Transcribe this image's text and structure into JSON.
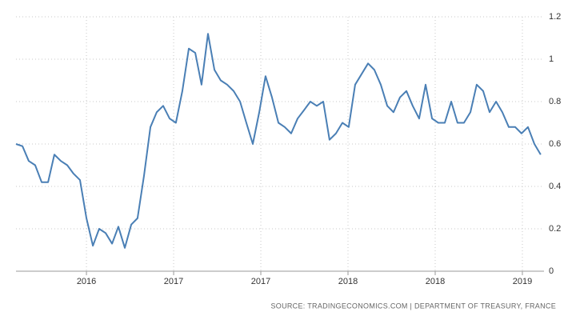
{
  "chart_data": {
    "type": "line",
    "source": "SOURCE: TRADINGECONOMICS.COM  |  DEPARTMENT OF TREASURY, FRANCE",
    "x": [
      2016.096,
      2016.133,
      2016.169,
      2016.206,
      2016.243,
      2016.28,
      2016.316,
      2016.353,
      2016.39,
      2016.426,
      2016.463,
      2016.5,
      2016.537,
      2016.573,
      2016.61,
      2016.647,
      2016.683,
      2016.72,
      2016.757,
      2016.793,
      2016.83,
      2016.867,
      2016.903,
      2016.94,
      2016.977,
      2017.013,
      2017.05,
      2017.087,
      2017.124,
      2017.16,
      2017.197,
      2017.234,
      2017.27,
      2017.307,
      2017.344,
      2017.381,
      2017.417,
      2017.454,
      2017.491,
      2017.527,
      2017.564,
      2017.601,
      2017.637,
      2017.674,
      2017.711,
      2017.748,
      2017.784,
      2017.821,
      2017.858,
      2017.894,
      2017.931,
      2017.968,
      2018.004,
      2018.041,
      2018.078,
      2018.115,
      2018.151,
      2018.188,
      2018.225,
      2018.261,
      2018.298,
      2018.335,
      2018.371,
      2018.408,
      2018.445,
      2018.482,
      2018.518,
      2018.555,
      2018.592,
      2018.628,
      2018.665,
      2018.702,
      2018.738,
      2018.775,
      2018.812,
      2018.849,
      2018.885,
      2018.922,
      2018.959,
      2018.995,
      2019.032,
      2019.069,
      2019.105
    ],
    "series": [
      {
        "color": "#4a7fb5",
        "values": [
          0.6,
          0.59,
          0.52,
          0.5,
          0.42,
          0.42,
          0.55,
          0.52,
          0.5,
          0.46,
          0.43,
          0.25,
          0.12,
          0.2,
          0.18,
          0.13,
          0.21,
          0.11,
          0.22,
          0.25,
          0.45,
          0.68,
          0.75,
          0.78,
          0.72,
          0.7,
          0.85,
          1.05,
          1.03,
          0.88,
          1.12,
          0.95,
          0.9,
          0.88,
          0.85,
          0.8,
          0.7,
          0.6,
          0.75,
          0.92,
          0.82,
          0.7,
          0.68,
          0.65,
          0.72,
          0.76,
          0.8,
          0.78,
          0.8,
          0.62,
          0.65,
          0.7,
          0.68,
          0.88,
          0.93,
          0.98,
          0.95,
          0.88,
          0.78,
          0.75,
          0.82,
          0.85,
          0.78,
          0.72,
          0.88,
          0.72,
          0.7,
          0.7,
          0.8,
          0.7,
          0.7,
          0.75,
          0.88,
          0.85,
          0.75,
          0.8,
          0.75,
          0.68,
          0.68,
          0.65,
          0.68,
          0.6,
          0.55
        ]
      }
    ],
    "xlim": [
      2016.096,
      2019.124
    ],
    "xticks": [
      {
        "value": 2016.5,
        "label": "2016"
      },
      {
        "value": 2017.0,
        "label": "2017"
      },
      {
        "value": 2017.5,
        "label": "2017"
      },
      {
        "value": 2018.0,
        "label": "2018"
      },
      {
        "value": 2018.5,
        "label": "2018"
      },
      {
        "value": 2019.0,
        "label": "2019"
      }
    ],
    "ylim": [
      0,
      1.2
    ],
    "yticks": [
      0,
      0.2,
      0.4,
      0.6,
      0.8,
      1,
      1.2
    ],
    "grid": true
  }
}
